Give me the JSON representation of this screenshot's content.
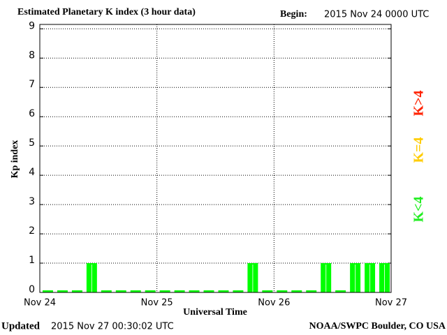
{
  "chart_data": {
    "type": "bar",
    "title": "Estimated Planetary K index (3 hour data)",
    "begin_label": "Begin:",
    "begin": "2015 Nov 24 0000 UTC",
    "y_label": "Kp index",
    "x_label": "Universal Time",
    "updated_label": "Updated",
    "updated": "2015 Nov 27 00:30:02 UTC",
    "credit": "NOAA/SWPC Boulder, CO USA",
    "day_labels": [
      "Nov 24",
      "Nov 25",
      "Nov 26",
      "Nov 27"
    ],
    "values": [
      0,
      0,
      0,
      1,
      0,
      0,
      0,
      0,
      0,
      0,
      0,
      0,
      0,
      0,
      1,
      0,
      0,
      0,
      0,
      1,
      0,
      1,
      1,
      1
    ],
    "color": "#00ff00",
    "ylim": [
      0,
      9.15
    ],
    "yticks": [
      0,
      1,
      2,
      3,
      4,
      5,
      6,
      7,
      8,
      9
    ],
    "grid": true,
    "legend": [
      {
        "name": "K<4",
        "color": "#22ee22"
      },
      {
        "name": "K=4",
        "color": "#ffcc00"
      },
      {
        "name": "K>4",
        "color": "#ff2200"
      }
    ]
  }
}
